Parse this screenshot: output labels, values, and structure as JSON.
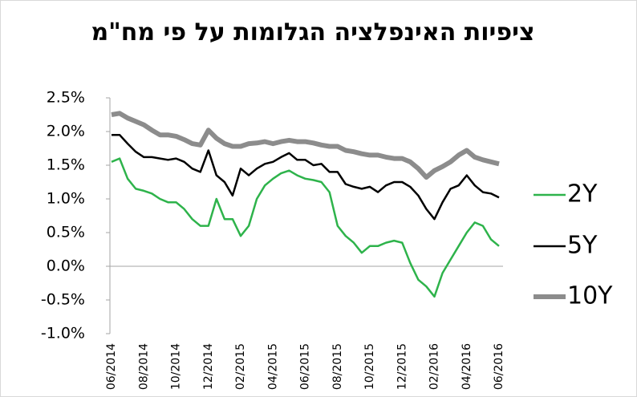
{
  "chart_data": {
    "type": "line",
    "title": "ציפיות האינפלציה הגלומות על פי מח\"מ",
    "categories": [
      "06/2014",
      null,
      null,
      null,
      "08/2014",
      null,
      null,
      null,
      "10/2014",
      null,
      null,
      null,
      "12/2014",
      null,
      null,
      null,
      "02/2015",
      null,
      null,
      null,
      "04/2015",
      null,
      null,
      null,
      "06/2015",
      null,
      null,
      null,
      "08/2015",
      null,
      null,
      null,
      "10/2015",
      null,
      null,
      null,
      "12/2015",
      null,
      null,
      null,
      "02/2016",
      null,
      null,
      null,
      "04/2016",
      null,
      null,
      null,
      "06/2016"
    ],
    "series": [
      {
        "name": "2Y",
        "color": "#2eb34b",
        "width": 2.5,
        "values": [
          1.55,
          1.6,
          1.3,
          1.15,
          1.12,
          1.08,
          1.0,
          0.95,
          0.95,
          0.85,
          0.7,
          0.6,
          0.6,
          1.0,
          0.7,
          0.7,
          0.45,
          0.6,
          1.0,
          1.2,
          1.3,
          1.38,
          1.42,
          1.35,
          1.3,
          1.28,
          1.25,
          1.1,
          0.6,
          0.45,
          0.35,
          0.2,
          0.3,
          0.3,
          0.35,
          0.38,
          0.35,
          0.05,
          -0.2,
          -0.3,
          -0.45,
          -0.1,
          0.1,
          0.3,
          0.5,
          0.65,
          0.6,
          0.4,
          0.3
        ]
      },
      {
        "name": "5Y",
        "color": "#000000",
        "width": 2.5,
        "values": [
          1.95,
          1.95,
          1.82,
          1.7,
          1.62,
          1.62,
          1.6,
          1.58,
          1.6,
          1.55,
          1.45,
          1.4,
          1.72,
          1.35,
          1.25,
          1.05,
          1.45,
          1.35,
          1.45,
          1.52,
          1.55,
          1.62,
          1.68,
          1.58,
          1.58,
          1.5,
          1.52,
          1.4,
          1.4,
          1.22,
          1.18,
          1.15,
          1.18,
          1.1,
          1.2,
          1.25,
          1.25,
          1.18,
          1.05,
          0.85,
          0.7,
          0.95,
          1.15,
          1.2,
          1.35,
          1.2,
          1.1,
          1.08,
          1.02
        ]
      },
      {
        "name": "10Y",
        "color": "#8c8c8c",
        "width": 6,
        "values": [
          2.25,
          2.27,
          2.2,
          2.15,
          2.1,
          2.02,
          1.95,
          1.95,
          1.93,
          1.88,
          1.82,
          1.8,
          2.02,
          1.9,
          1.82,
          1.78,
          1.78,
          1.82,
          1.83,
          1.85,
          1.82,
          1.85,
          1.87,
          1.85,
          1.85,
          1.83,
          1.8,
          1.78,
          1.78,
          1.72,
          1.7,
          1.67,
          1.65,
          1.65,
          1.62,
          1.6,
          1.6,
          1.55,
          1.45,
          1.32,
          1.42,
          1.48,
          1.55,
          1.65,
          1.72,
          1.62,
          1.58,
          1.55,
          1.52
        ]
      }
    ],
    "ylim": [
      -1.0,
      2.5
    ],
    "yticks": [
      {
        "value": -1.0,
        "label": "-1.0%"
      },
      {
        "value": -0.5,
        "label": "-0.5%"
      },
      {
        "value": 0,
        "label": "0.0%"
      },
      {
        "value": 0.5,
        "label": "0.5%"
      },
      {
        "value": 1.0,
        "label": "1.0%"
      },
      {
        "value": 1.5,
        "label": "1.5%"
      },
      {
        "value": 2.0,
        "label": "2.0%"
      },
      {
        "value": 2.5,
        "label": "2.5%"
      }
    ],
    "legend": "right"
  }
}
